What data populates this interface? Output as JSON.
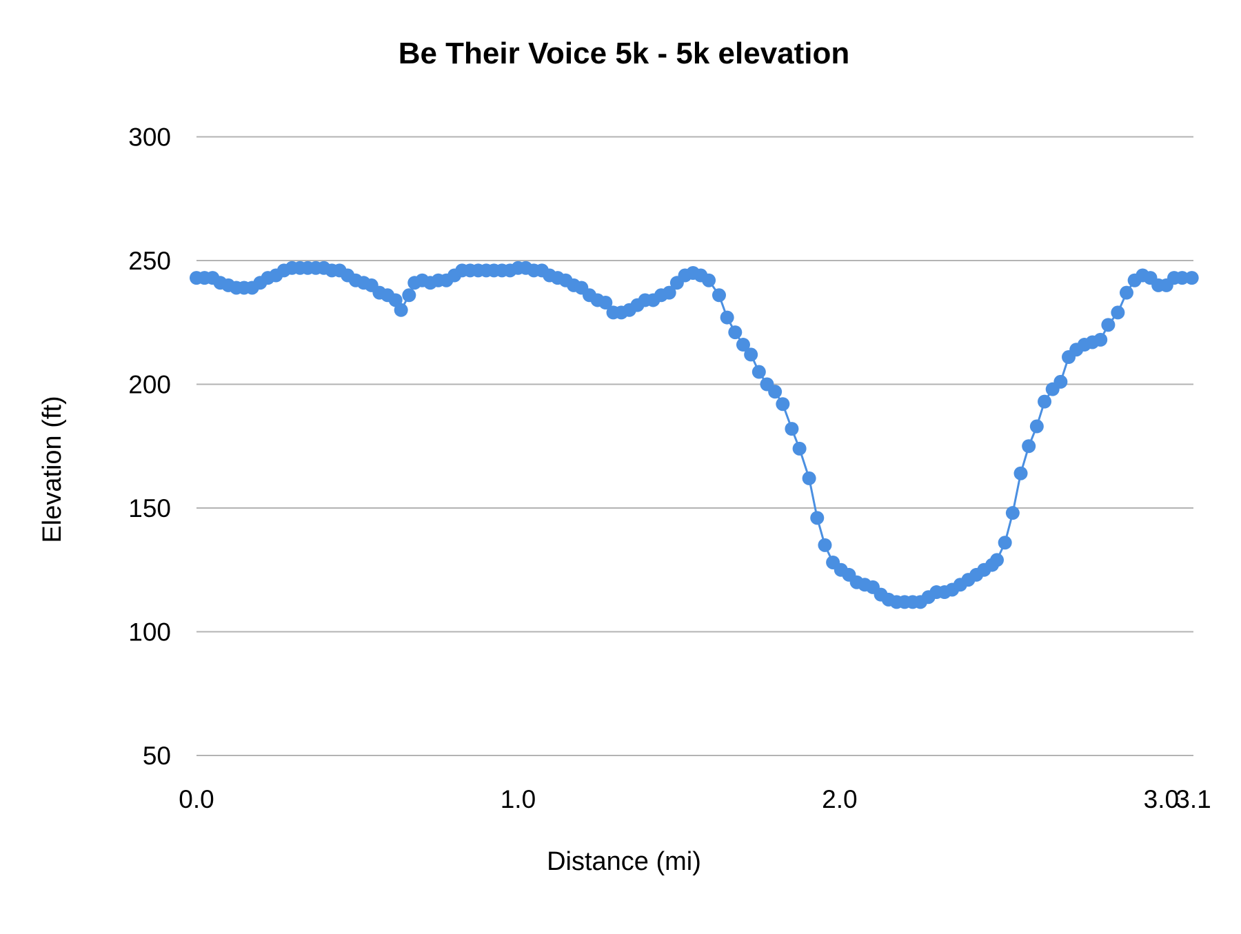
{
  "chart_data": {
    "type": "line",
    "title": "Be Their Voice 5k - 5k elevation",
    "xlabel": "Distance (mi)",
    "ylabel": "Elevation (ft)",
    "xlim": [
      0,
      3.1
    ],
    "ylim": [
      50,
      300
    ],
    "x_ticks": [
      "0.0",
      "1.0",
      "2.0",
      "3.0",
      "3.1"
    ],
    "x_tick_values": [
      0,
      1,
      2,
      3,
      3.1
    ],
    "y_ticks": [
      "50",
      "100",
      "150",
      "200",
      "250",
      "300"
    ],
    "y_tick_values": [
      50,
      100,
      150,
      200,
      250,
      300
    ],
    "grid": "horizontal",
    "legend": "none",
    "markers": true,
    "color": "#4a8fe1",
    "series": [
      {
        "x": [
          0,
          0.025,
          0.05,
          0.074,
          0.099,
          0.124,
          0.148,
          0.173,
          0.198,
          0.222,
          0.247,
          0.272,
          0.297,
          0.322,
          0.346,
          0.371,
          0.396,
          0.421,
          0.445,
          0.47,
          0.495,
          0.52,
          0.544,
          0.569,
          0.594,
          0.619,
          0.636,
          0.661,
          0.678,
          0.702,
          0.727,
          0.752,
          0.777,
          0.802,
          0.826,
          0.851,
          0.876,
          0.901,
          0.925,
          0.95,
          0.975,
          1.0,
          1.024,
          1.049,
          1.074,
          1.098,
          1.123,
          1.148,
          1.173,
          1.197,
          1.222,
          1.247,
          1.272,
          1.296,
          1.321,
          1.346,
          1.371,
          1.395,
          1.42,
          1.445,
          1.47,
          1.494,
          1.519,
          1.544,
          1.568,
          1.593,
          1.625,
          1.65,
          1.675,
          1.7,
          1.724,
          1.749,
          1.774,
          1.799,
          1.823,
          1.851,
          1.875,
          1.905,
          1.93,
          1.954,
          1.979,
          2.004,
          2.029,
          2.053,
          2.078,
          2.103,
          2.128,
          2.152,
          2.177,
          2.202,
          2.227,
          2.251,
          2.276,
          2.301,
          2.326,
          2.35,
          2.375,
          2.4,
          2.425,
          2.449,
          2.474,
          2.489,
          2.514,
          2.538,
          2.563,
          2.588,
          2.613,
          2.637,
          2.662,
          2.687,
          2.712,
          2.736,
          2.761,
          2.786,
          2.811,
          2.835,
          2.865,
          2.892,
          2.917,
          2.942,
          2.966,
          2.991,
          3.016,
          3.04,
          3.065,
          3.095
        ],
        "y": [
          243,
          243,
          243,
          241,
          240,
          239,
          239,
          239,
          241,
          243,
          244,
          246,
          247,
          247,
          247,
          247,
          247,
          246,
          246,
          244,
          242,
          241,
          240,
          237,
          236,
          234,
          230,
          236,
          241,
          242,
          241,
          242,
          242,
          244,
          246,
          246,
          246,
          246,
          246,
          246,
          246,
          247,
          247,
          246,
          246,
          244,
          243,
          242,
          240,
          239,
          236,
          234,
          233,
          229,
          229,
          230,
          232,
          234,
          234,
          236,
          237,
          241,
          244,
          245,
          244,
          242,
          236,
          227,
          221,
          216,
          212,
          205,
          200,
          197,
          192,
          182,
          174,
          162,
          146,
          135,
          128,
          125,
          123,
          120,
          119,
          118,
          115,
          113,
          112,
          112,
          112,
          112,
          114,
          116,
          116,
          117,
          119,
          121,
          123,
          125,
          127,
          129,
          136,
          148,
          164,
          175,
          183,
          193,
          198,
          201,
          211,
          214,
          216,
          217,
          218,
          224,
          229,
          237,
          242,
          244,
          243,
          240,
          240,
          243,
          243,
          243
        ]
      }
    ]
  }
}
